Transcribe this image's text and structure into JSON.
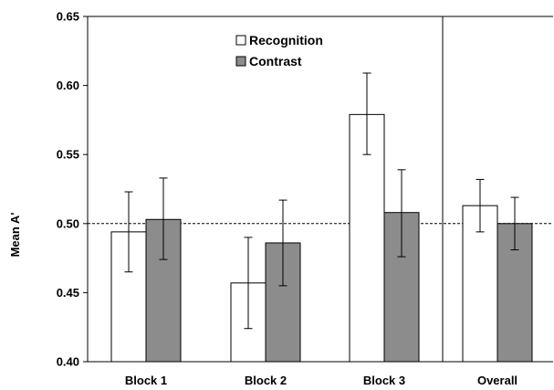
{
  "chart_data": {
    "type": "bar",
    "title": "",
    "xlabel": "",
    "ylabel": "Mean A'",
    "ylim": [
      0.4,
      0.65
    ],
    "yticks": [
      "0.40",
      "0.45",
      "0.50",
      "0.55",
      "0.60",
      "0.65"
    ],
    "reference_line": 0.5,
    "categories": [
      "Block 1",
      "Block 2",
      "Block 3",
      "Overall"
    ],
    "grid": false,
    "legend_position": "top-center",
    "series": [
      {
        "name": "Recognition",
        "color": "#ffffff",
        "values": [
          0.494,
          0.457,
          0.579,
          0.513
        ],
        "error_low": [
          0.465,
          0.424,
          0.55,
          0.494
        ],
        "error_high": [
          0.523,
          0.49,
          0.609,
          0.532
        ]
      },
      {
        "name": "Contrast",
        "color": "#8c8c8c",
        "values": [
          0.503,
          0.486,
          0.508,
          0.5
        ],
        "error_low": [
          0.474,
          0.455,
          0.476,
          0.481
        ],
        "error_high": [
          0.533,
          0.517,
          0.539,
          0.519
        ]
      }
    ]
  }
}
